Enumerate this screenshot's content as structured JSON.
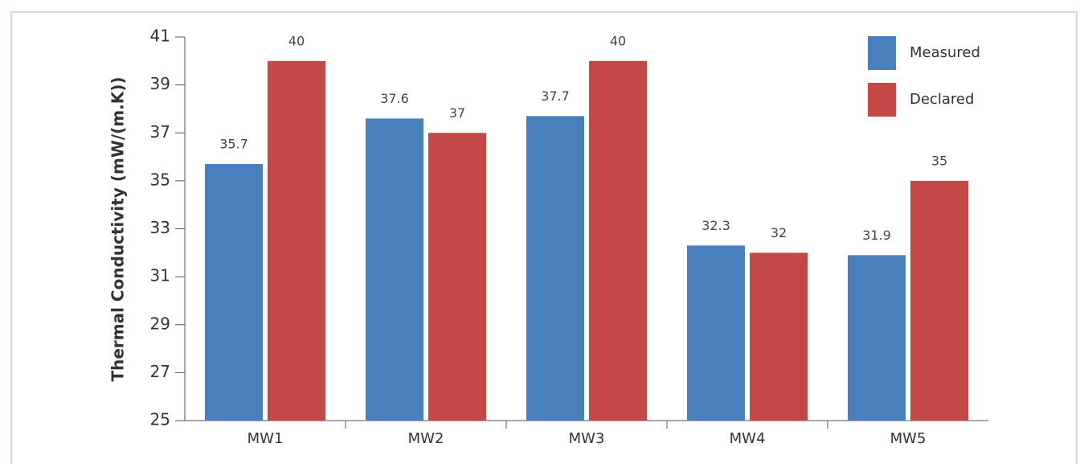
{
  "chart_data": {
    "type": "bar",
    "y_label": "Thermal Conductivity (mW/(m.K))",
    "categories": [
      "MW1",
      "MW2",
      "MW3",
      "MW4",
      "MW5"
    ],
    "series": [
      {
        "name": "Measured",
        "color": "#4a7fbe",
        "values": [
          35.7,
          37.6,
          37.7,
          32.3,
          31.9
        ]
      },
      {
        "name": "Declared",
        "color": "#c44845",
        "values": [
          40,
          37,
          40,
          32,
          35
        ]
      }
    ],
    "ylim": [
      25,
      41
    ],
    "yticks": [
      25,
      27,
      29,
      31,
      33,
      35,
      37,
      39,
      41
    ],
    "legend": "upper right"
  }
}
